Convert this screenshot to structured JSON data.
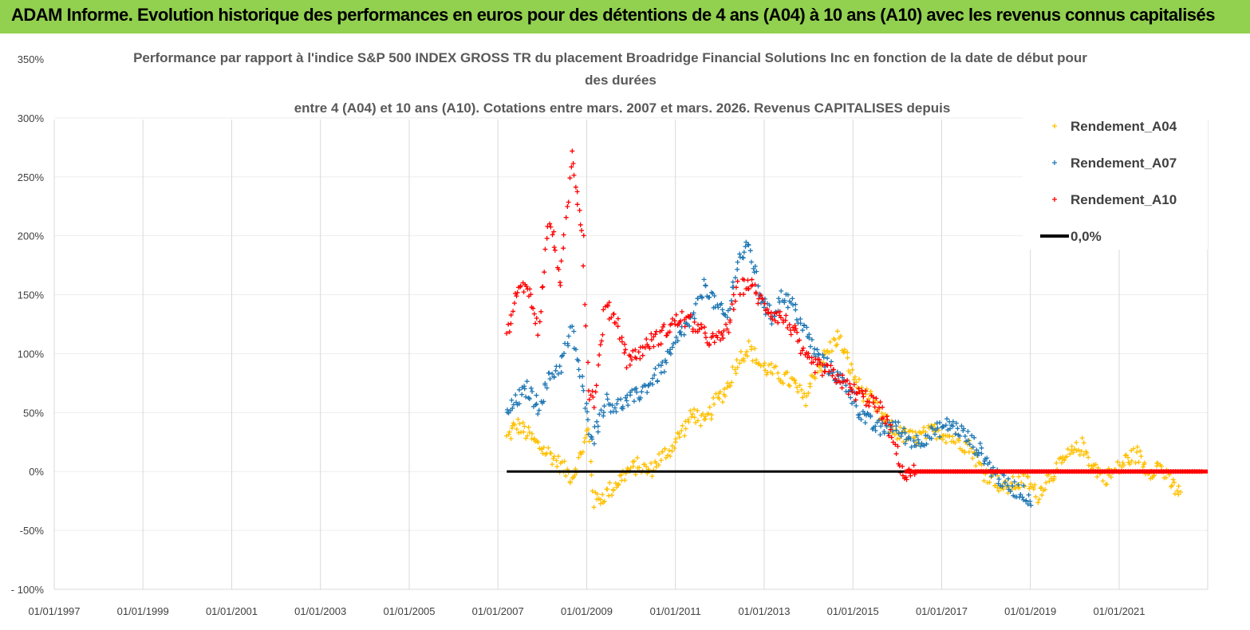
{
  "header": {
    "title": "ADAM Informe. Evolution historique des performances en euros pour des détentions de 4 ans (A04) à 10 ans (A10) avec les revenus connus capitalisés"
  },
  "colors": {
    "header_bg": "#92d050",
    "A04": "#ffc000",
    "A07": "#1f77b4",
    "A10": "#ff0000",
    "zero": "#000000",
    "grid": "#d9d9d9"
  },
  "chart_data": {
    "type": "scatter",
    "title_lines": [
      "Performance par rapport à l'indice S&P 500 INDEX GROSS TR  du placement Broadridge Financial Solutions Inc en fonction de la date de début pour",
      "des durées",
      "entre 4 (A04) et 10 ans (A10). Cotations entre mars. 2007 et mars. 2026. Revenus CAPITALISES depuis"
    ],
    "x_tick_labels": [
      "01/01/1997",
      "01/01/1999",
      "01/01/2001",
      "01/01/2003",
      "01/01/2005",
      "01/01/2007",
      "01/01/2009",
      "01/01/2011",
      "01/01/2013",
      "01/01/2015",
      "01/01/2017",
      "01/01/2019",
      "01/01/2021"
    ],
    "x_range": [
      "1997-01-01",
      "2022-12-31"
    ],
    "y_tick_labels": [
      "350%",
      "300%",
      "250%",
      "200%",
      "150%",
      "100%",
      "50%",
      "0%",
      "-50%",
      "- 100%"
    ],
    "ylim": [
      -100,
      350
    ],
    "grid": "vertical",
    "legend_position": "top-right",
    "series": [
      {
        "name": "Rendement_A04",
        "color": "#ffc000",
        "points": [
          [
            "2007-03-15",
            28
          ],
          [
            "2007-06-01",
            40
          ],
          [
            "2007-09-01",
            32
          ],
          [
            "2007-12-01",
            22
          ],
          [
            "2008-03-01",
            15
          ],
          [
            "2008-06-01",
            5
          ],
          [
            "2008-09-01",
            -5
          ],
          [
            "2008-12-01",
            20
          ],
          [
            "2009-01-15",
            35
          ],
          [
            "2009-03-01",
            -25
          ],
          [
            "2009-06-01",
            -20
          ],
          [
            "2009-09-01",
            -10
          ],
          [
            "2009-12-01",
            0
          ],
          [
            "2010-03-01",
            5
          ],
          [
            "2010-06-01",
            0
          ],
          [
            "2010-09-01",
            12
          ],
          [
            "2010-12-01",
            20
          ],
          [
            "2011-03-01",
            35
          ],
          [
            "2011-06-01",
            50
          ],
          [
            "2011-09-01",
            40
          ],
          [
            "2011-12-01",
            60
          ],
          [
            "2012-03-01",
            70
          ],
          [
            "2012-06-01",
            95
          ],
          [
            "2012-09-01",
            105
          ],
          [
            "2012-12-01",
            90
          ],
          [
            "2013-03-01",
            85
          ],
          [
            "2013-06-01",
            80
          ],
          [
            "2013-09-01",
            75
          ],
          [
            "2013-12-01",
            60
          ],
          [
            "2014-03-01",
            85
          ],
          [
            "2014-06-01",
            100
          ],
          [
            "2014-09-01",
            115
          ],
          [
            "2014-12-01",
            90
          ],
          [
            "2015-03-01",
            70
          ],
          [
            "2015-06-01",
            60
          ],
          [
            "2015-09-01",
            45
          ],
          [
            "2015-12-01",
            35
          ],
          [
            "2016-03-01",
            30
          ],
          [
            "2016-06-01",
            28
          ],
          [
            "2016-09-01",
            32
          ],
          [
            "2016-12-01",
            35
          ],
          [
            "2017-03-01",
            30
          ],
          [
            "2017-06-01",
            25
          ],
          [
            "2017-09-01",
            20
          ],
          [
            "2017-12-01",
            0
          ],
          [
            "2018-03-01",
            -5
          ],
          [
            "2018-06-01",
            -15
          ],
          [
            "2018-09-01",
            -10
          ],
          [
            "2018-12-01",
            -8
          ],
          [
            "2019-03-01",
            -20
          ],
          [
            "2019-06-01",
            -5
          ],
          [
            "2019-09-01",
            5
          ],
          [
            "2019-12-01",
            15
          ],
          [
            "2020-03-01",
            22
          ],
          [
            "2020-06-01",
            5
          ],
          [
            "2020-09-01",
            -5
          ],
          [
            "2020-12-01",
            0
          ],
          [
            "2021-03-01",
            10
          ],
          [
            "2021-06-01",
            15
          ],
          [
            "2021-09-01",
            0
          ],
          [
            "2021-12-01",
            5
          ],
          [
            "2022-03-01",
            -10
          ],
          [
            "2022-06-01",
            -20
          ]
        ]
      },
      {
        "name": "Rendement_A07",
        "color": "#1f77b4",
        "points": [
          [
            "2007-03-15",
            48
          ],
          [
            "2007-06-01",
            60
          ],
          [
            "2007-09-01",
            70
          ],
          [
            "2007-12-01",
            55
          ],
          [
            "2008-03-01",
            80
          ],
          [
            "2008-06-01",
            90
          ],
          [
            "2008-09-01",
            120
          ],
          [
            "2008-12-01",
            70
          ],
          [
            "2009-01-15",
            40
          ],
          [
            "2009-03-01",
            30
          ],
          [
            "2009-06-01",
            60
          ],
          [
            "2009-09-01",
            55
          ],
          [
            "2009-12-01",
            60
          ],
          [
            "2010-03-01",
            65
          ],
          [
            "2010-06-01",
            75
          ],
          [
            "2010-09-01",
            85
          ],
          [
            "2010-12-01",
            100
          ],
          [
            "2011-03-01",
            120
          ],
          [
            "2011-06-01",
            130
          ],
          [
            "2011-09-01",
            160
          ],
          [
            "2011-12-01",
            140
          ],
          [
            "2012-03-01",
            130
          ],
          [
            "2012-06-01",
            180
          ],
          [
            "2012-09-01",
            190
          ],
          [
            "2012-12-01",
            150
          ],
          [
            "2013-03-01",
            130
          ],
          [
            "2013-06-01",
            150
          ],
          [
            "2013-09-01",
            140
          ],
          [
            "2013-12-01",
            120
          ],
          [
            "2014-03-01",
            100
          ],
          [
            "2014-06-01",
            90
          ],
          [
            "2014-09-01",
            80
          ],
          [
            "2014-12-01",
            70
          ],
          [
            "2015-03-01",
            50
          ],
          [
            "2015-06-01",
            40
          ],
          [
            "2015-09-01",
            35
          ],
          [
            "2015-12-01",
            40
          ],
          [
            "2016-03-01",
            30
          ],
          [
            "2016-06-01",
            25
          ],
          [
            "2016-09-01",
            30
          ],
          [
            "2016-12-01",
            35
          ],
          [
            "2017-03-01",
            40
          ],
          [
            "2017-06-01",
            35
          ],
          [
            "2017-09-01",
            25
          ],
          [
            "2017-12-01",
            15
          ],
          [
            "2018-03-01",
            0
          ],
          [
            "2018-06-01",
            -10
          ],
          [
            "2018-09-01",
            -15
          ],
          [
            "2018-12-01",
            -20
          ],
          [
            "2019-01-15",
            -25
          ]
        ]
      },
      {
        "name": "Rendement_A10",
        "color": "#ff0000",
        "points": [
          [
            "2007-03-15",
            115
          ],
          [
            "2007-06-01",
            150
          ],
          [
            "2007-09-01",
            160
          ],
          [
            "2007-12-01",
            120
          ],
          [
            "2008-03-01",
            215
          ],
          [
            "2008-06-01",
            160
          ],
          [
            "2008-09-01",
            270
          ],
          [
            "2008-12-01",
            200
          ],
          [
            "2009-01-15",
            70
          ],
          [
            "2009-03-01",
            60
          ],
          [
            "2009-06-01",
            140
          ],
          [
            "2009-09-01",
            130
          ],
          [
            "2009-12-01",
            95
          ],
          [
            "2010-03-01",
            100
          ],
          [
            "2010-06-01",
            110
          ],
          [
            "2010-09-01",
            115
          ],
          [
            "2010-12-01",
            125
          ],
          [
            "2011-03-01",
            130
          ],
          [
            "2011-06-01",
            125
          ],
          [
            "2011-09-01",
            115
          ],
          [
            "2011-12-01",
            110
          ],
          [
            "2012-03-01",
            120
          ],
          [
            "2012-06-01",
            155
          ],
          [
            "2012-09-01",
            160
          ],
          [
            "2012-12-01",
            145
          ],
          [
            "2013-03-01",
            135
          ],
          [
            "2013-06-01",
            130
          ],
          [
            "2013-09-01",
            120
          ],
          [
            "2013-12-01",
            95
          ],
          [
            "2014-03-01",
            90
          ],
          [
            "2014-06-01",
            85
          ],
          [
            "2014-09-01",
            80
          ],
          [
            "2014-12-01",
            70
          ],
          [
            "2015-03-01",
            65
          ],
          [
            "2015-06-01",
            60
          ],
          [
            "2015-09-01",
            50
          ],
          [
            "2015-12-01",
            25
          ],
          [
            "2016-03-01",
            -5
          ],
          [
            "2016-06-01",
            0
          ],
          [
            "2017-06-01",
            0
          ],
          [
            "2018-06-01",
            0
          ],
          [
            "2019-06-01",
            0
          ],
          [
            "2020-06-01",
            0
          ],
          [
            "2021-06-01",
            0
          ],
          [
            "2022-12-01",
            0
          ]
        ]
      },
      {
        "name": "0,0%",
        "color": "#000000",
        "points": [
          [
            "2007-03-15",
            0
          ],
          [
            "2016-03-01",
            0
          ]
        ]
      }
    ]
  }
}
